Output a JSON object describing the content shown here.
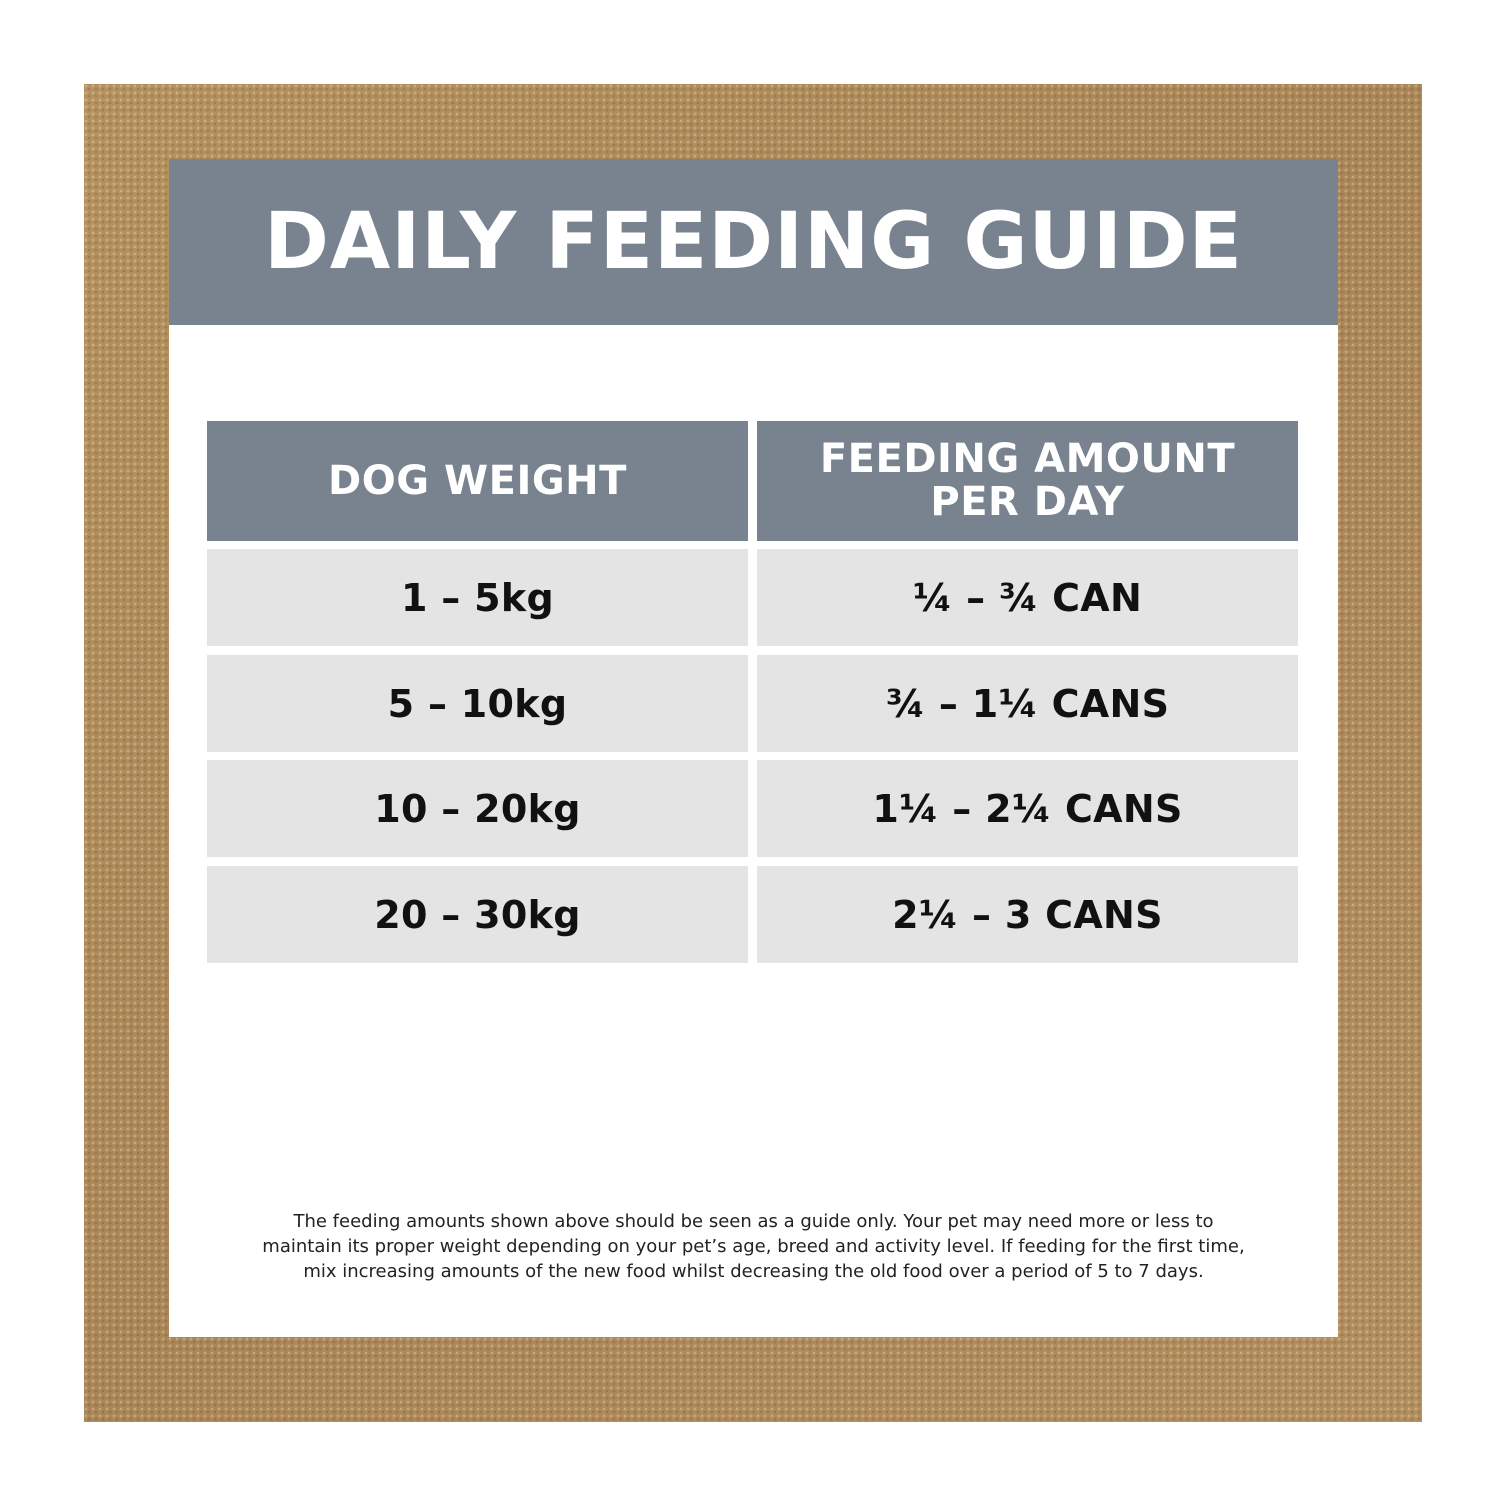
{
  "title": "DAILY FEEDING GUIDE",
  "table": {
    "headers": [
      "DOG WEIGHT",
      "FEEDING AMOUNT\nPER DAY"
    ],
    "rows": [
      [
        "1 – 5kg",
        "¼ – ¾ CAN"
      ],
      [
        "5 – 10kg",
        "¾ – 1¼ CANS"
      ],
      [
        "10 – 20kg",
        "1¼ – 2¼ CANS"
      ],
      [
        "20 – 30kg",
        "2¼ – 3 CANS"
      ]
    ]
  },
  "note": [
    "The feeding amounts shown above should be seen as a guide only. Your pet may need more or less to",
    "maintain its proper weight depending on your pet’s age, breed and activity level. If feeding for the first time,",
    "mix increasing amounts of the new food whilst decreasing the old food over a period of 5 to 7 days."
  ],
  "colors": {
    "frame": "#b08d60",
    "header_band": "#78838f",
    "row_fill": "#e4e4e5",
    "panel": "#ffffff"
  }
}
